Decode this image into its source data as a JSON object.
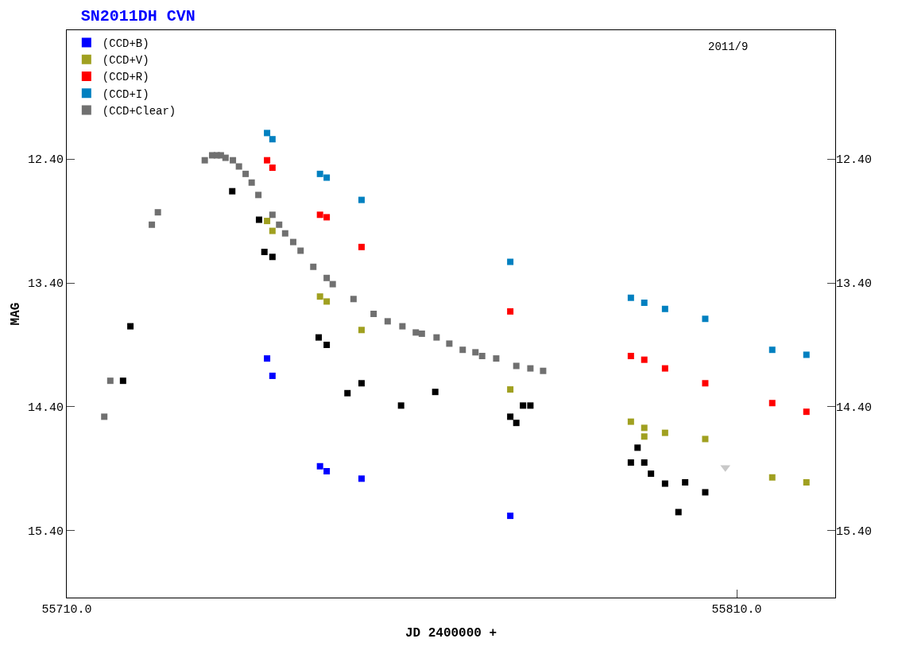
{
  "chart_data": {
    "type": "scatter",
    "title": "SN2011DH CVN",
    "xlabel": "JD 2400000 +",
    "ylabel": "MAG",
    "annotations": [
      "2011/9"
    ],
    "xlim": [
      55710,
      55824.7
    ],
    "xticks": [
      {
        "value": 55710,
        "label": "55710.0"
      },
      {
        "value": 55810,
        "label": "55810.0"
      }
    ],
    "ylim": [
      15.94,
      11.36
    ],
    "yticks": [
      {
        "value": 12.4,
        "label": "12.40"
      },
      {
        "value": 13.4,
        "label": "13.40"
      },
      {
        "value": 14.4,
        "label": "14.40"
      },
      {
        "value": 15.4,
        "label": "15.40"
      }
    ],
    "y2lim": [
      15.94,
      11.36
    ],
    "y2ticks": [
      {
        "value": 12.4,
        "label": "12.40"
      },
      {
        "value": 13.4,
        "label": "13.40"
      },
      {
        "value": 14.4,
        "label": "14.40"
      },
      {
        "value": 15.4,
        "label": "15.40"
      }
    ],
    "legend": "top left",
    "marker": "square",
    "series": [
      {
        "name": "(CCD+B)",
        "color": "#0000ff",
        "x": [
          55739.9,
          55740.7,
          55747.8,
          55748.8,
          55754.0,
          55776.2
        ],
        "values": [
          14.01,
          14.15,
          14.88,
          14.92,
          14.98,
          15.28
        ]
      },
      {
        "name": "(CCD+V)",
        "color": "#a0a020",
        "x": [
          55739.9,
          55740.7,
          55747.8,
          55748.8,
          55754.0,
          55776.2,
          55794.2,
          55796.2,
          55796.2,
          55799.3,
          55805.3,
          55815.3,
          55820.4
        ],
        "values": [
          12.9,
          12.98,
          13.51,
          13.55,
          13.78,
          14.26,
          14.52,
          14.57,
          14.64,
          14.61,
          14.66,
          14.97,
          15.01
        ]
      },
      {
        "name": "(CCD+R)",
        "color": "#ff0000",
        "x": [
          55739.9,
          55740.7,
          55747.8,
          55748.8,
          55754.0,
          55776.2,
          55794.2,
          55796.2,
          55799.3,
          55805.3,
          55815.3,
          55820.4
        ],
        "values": [
          12.41,
          12.47,
          12.85,
          12.87,
          13.11,
          13.63,
          13.99,
          14.02,
          14.09,
          14.21,
          14.37,
          14.44
        ]
      },
      {
        "name": "(CCD+I)",
        "color": "#0080c0",
        "x": [
          55739.9,
          55740.7,
          55747.8,
          55748.8,
          55754.0,
          55776.2,
          55794.2,
          55796.2,
          55799.3,
          55805.3,
          55815.3,
          55820.4
        ],
        "values": [
          12.19,
          12.24,
          12.52,
          12.55,
          12.73,
          13.23,
          13.52,
          13.56,
          13.61,
          13.69,
          13.94,
          13.98
        ]
      },
      {
        "name": "(CCD+Clear)",
        "color": "#707070",
        "x": [
          55715.6,
          55716.5,
          55722.7,
          55723.6,
          55730.6,
          55731.7,
          55732.4,
          55733.0,
          55733.7,
          55734.8,
          55735.7,
          55736.7,
          55737.6,
          55738.6,
          55740.7,
          55741.7,
          55742.6,
          55743.8,
          55744.9,
          55746.8,
          55748.8,
          55749.7,
          55752.8,
          55755.8,
          55757.9,
          55760.1,
          55762.1,
          55763.0,
          55765.2,
          55767.1,
          55769.1,
          55771.0,
          55772.0,
          55774.1,
          55777.1,
          55779.2,
          55781.1
        ],
        "values": [
          14.48,
          14.19,
          12.93,
          12.83,
          12.41,
          12.37,
          12.37,
          12.37,
          12.39,
          12.41,
          12.46,
          12.52,
          12.59,
          12.69,
          12.85,
          12.93,
          13.0,
          13.07,
          13.14,
          13.27,
          13.36,
          13.41,
          13.53,
          13.65,
          13.71,
          13.75,
          13.8,
          13.81,
          13.84,
          13.89,
          13.94,
          13.96,
          13.99,
          14.01,
          14.07,
          14.09,
          14.11
        ]
      },
      {
        "color": "#000000",
        "x": [
          55718.4,
          55719.5,
          55734.7,
          55738.7,
          55739.5,
          55740.7,
          55747.6,
          55748.8,
          55751.9,
          55754.0,
          55759.9,
          55765.0,
          55776.2,
          55777.1,
          55778.1,
          55779.2,
          55794.2,
          55795.2,
          55796.2,
          55797.2,
          55799.3,
          55801.3,
          55802.3,
          55805.3
        ],
        "values": [
          14.19,
          13.75,
          12.66,
          12.89,
          13.15,
          13.19,
          13.84,
          13.9,
          14.29,
          14.21,
          14.39,
          14.28,
          14.48,
          14.53,
          14.39,
          14.39,
          14.85,
          14.73,
          14.85,
          14.94,
          15.02,
          15.25,
          15.01,
          15.09
        ]
      },
      {
        "color": "#c8c8c8",
        "marker": "triangle",
        "x": [
          55808.3
        ],
        "values": [
          14.89
        ]
      }
    ]
  }
}
